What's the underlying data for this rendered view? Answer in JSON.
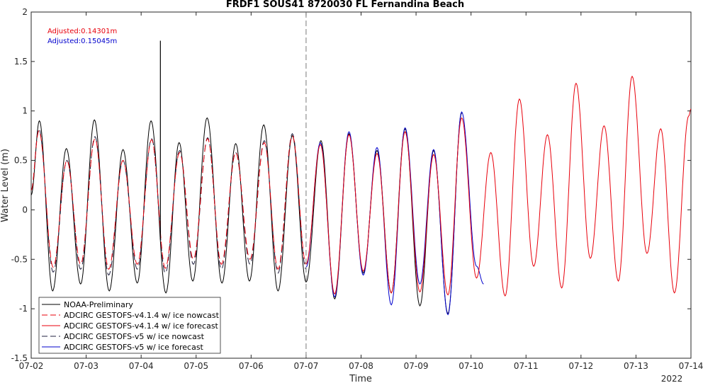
{
  "chart_data": {
    "type": "line",
    "title": "FRDF1 SOUS41 8720030 FL Fernandina Beach",
    "xlabel": "Time",
    "ylabel": "Water Level (m)",
    "x_year_label": "2022",
    "xlim": [
      0,
      12
    ],
    "ylim": [
      -1.5,
      2
    ],
    "x_tick_values": [
      0,
      1,
      2,
      3,
      4,
      5,
      6,
      7,
      8,
      9,
      10,
      11,
      12
    ],
    "x_tick_labels": [
      "07-02",
      "07-03",
      "07-04",
      "07-05",
      "07-06",
      "07-07",
      "07-08",
      "07-09",
      "07-10",
      "07-11",
      "07-12",
      "07-13",
      "07-14"
    ],
    "y_tick_values": [
      -1.5,
      -1,
      -0.5,
      0,
      0.5,
      1,
      1.5,
      2
    ],
    "y_tick_labels": [
      "-1.5",
      "-1",
      "-0.5",
      "0",
      "0.5",
      "1",
      "1.5",
      "2"
    ],
    "vertical_marker_x": 5,
    "annotations": [
      {
        "text": "Adjusted:0.14301m",
        "color": "#e8000b"
      },
      {
        "text": "Adjusted:0.15045m",
        "color": "#0000cd"
      }
    ],
    "legend_position": "bottom-left",
    "spike": {
      "x": 2.35,
      "y_top": 1.71,
      "y_bottom": -0.3
    },
    "series": [
      {
        "name": "NOAA-Preliminary",
        "color": "#000000",
        "dash": "solid",
        "x": [
          0,
          0.15,
          0.39,
          0.64,
          0.9,
          1.15,
          1.42,
          1.67,
          1.93,
          2.18,
          2.45,
          2.69,
          2.94,
          3.2,
          3.47,
          3.72,
          3.97,
          4.23,
          4.49,
          4.75,
          5.0,
          5.27,
          5.52,
          5.78,
          6.04,
          6.29,
          6.55,
          6.8,
          7.07,
          7.32,
          7.58,
          7.83,
          8.1,
          8.36,
          8.6,
          8.86,
          9.12,
          9.27
        ],
        "y": [
          0.15,
          0.9,
          -0.82,
          0.62,
          -0.75,
          0.91,
          -0.82,
          0.61,
          -0.74,
          0.9,
          -0.84,
          0.68,
          -0.72,
          0.93,
          -0.74,
          0.67,
          -0.72,
          0.86,
          -0.82,
          0.75,
          -0.73,
          0.7,
          -0.9,
          0.77,
          -0.64,
          0.6,
          -0.84,
          0.82,
          -0.97,
          0.6,
          -1.05,
          0.98,
          null,
          null,
          null,
          null,
          null,
          null
        ]
      },
      {
        "name": "ADCIRC GESTOFS-v4.1.4 w/ ice nowcast",
        "color": "#e8000b",
        "dash": "dashed",
        "x": [
          0,
          0.14,
          0.4,
          0.65,
          0.9,
          1.16,
          1.41,
          1.67,
          1.93,
          2.19,
          2.44,
          2.7,
          2.95,
          3.21,
          3.46,
          3.72,
          3.98,
          4.24,
          4.49,
          4.75,
          5.0
        ],
        "y": [
          0.2,
          0.8,
          -0.58,
          0.5,
          -0.55,
          0.72,
          -0.6,
          0.5,
          -0.55,
          0.71,
          -0.59,
          0.58,
          -0.5,
          0.72,
          -0.55,
          0.58,
          -0.5,
          0.68,
          -0.6,
          0.75,
          -0.55
        ]
      },
      {
        "name": "ADCIRC GESTOFS-v4.1.4 w/ ice forecast",
        "color": "#e8000b",
        "dash": "solid",
        "x": [
          5.0,
          5.26,
          5.52,
          5.78,
          6.04,
          6.29,
          6.55,
          6.8,
          7.07,
          7.32,
          7.58,
          7.83,
          8.1,
          8.36,
          8.62,
          8.88,
          9.14,
          9.39,
          9.65,
          9.91,
          10.17,
          10.42,
          10.68,
          10.93,
          11.2,
          11.45,
          11.7,
          11.96,
          12.0
        ],
        "y": [
          -0.55,
          0.66,
          -0.85,
          0.76,
          -0.62,
          0.57,
          -0.84,
          0.79,
          -0.83,
          0.56,
          -0.86,
          0.93,
          -0.69,
          0.58,
          -0.87,
          1.12,
          -0.57,
          0.76,
          -0.79,
          1.28,
          -0.49,
          0.85,
          -0.72,
          1.35,
          -0.44,
          0.82,
          -0.84,
          0.95,
          1.02
        ]
      },
      {
        "name": "ADCIRC GESTOFS-v5 w/ ice nowcast",
        "color": "#1f1f3f",
        "dash": "dashed",
        "x": [
          0,
          0.14,
          0.4,
          0.65,
          0.9,
          1.16,
          1.41,
          1.67,
          1.93,
          2.19,
          2.44,
          2.7,
          2.95,
          3.21,
          3.46,
          3.72,
          3.98,
          4.24,
          4.49,
          4.75,
          5.0
        ],
        "y": [
          0.2,
          0.82,
          -0.63,
          0.5,
          -0.6,
          0.74,
          -0.66,
          0.5,
          -0.6,
          0.72,
          -0.64,
          0.6,
          -0.55,
          0.73,
          -0.6,
          0.58,
          -0.55,
          0.7,
          -0.64,
          0.77,
          -0.6
        ]
      },
      {
        "name": "ADCIRC GESTOFS-v5 w/ ice forecast",
        "color": "#0000cd",
        "dash": "solid",
        "x": [
          5.0,
          5.26,
          5.52,
          5.78,
          6.04,
          6.29,
          6.55,
          6.8,
          7.07,
          7.32,
          7.58,
          7.83,
          8.1,
          8.23
        ],
        "y": [
          -0.58,
          0.68,
          -0.88,
          0.79,
          -0.66,
          0.63,
          -0.96,
          0.83,
          -0.75,
          0.61,
          -1.06,
          0.99,
          -0.57,
          -0.75
        ]
      }
    ]
  }
}
